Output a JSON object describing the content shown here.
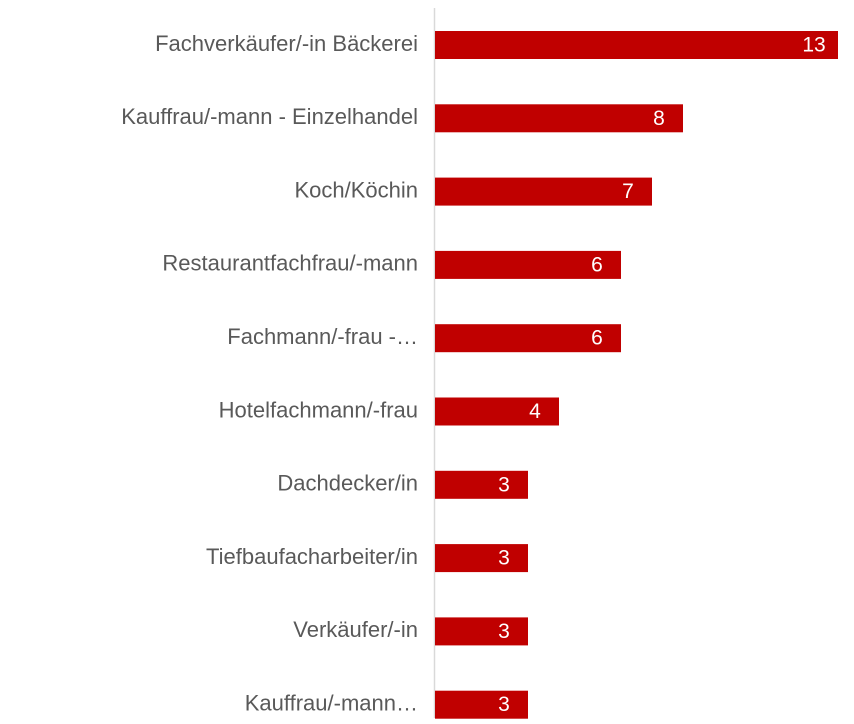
{
  "chart_data": {
    "type": "bar",
    "orientation": "horizontal",
    "categories": [
      "Fachverkäufer/-in Bäckerei",
      "Kauffrau/-mann - Einzelhandel",
      "Koch/Köchin",
      "Restaurantfachfrau/-mann",
      "Fachmann/-frau -…",
      "Hotelfachmann/-frau",
      "Dachdecker/in",
      "Tiefbaufacharbeiter/in",
      "Verkäufer/-in",
      "Kauffrau/-mann…"
    ],
    "values": [
      13,
      8,
      7,
      6,
      6,
      4,
      3,
      3,
      3,
      3
    ],
    "color": "#c00000"
  }
}
